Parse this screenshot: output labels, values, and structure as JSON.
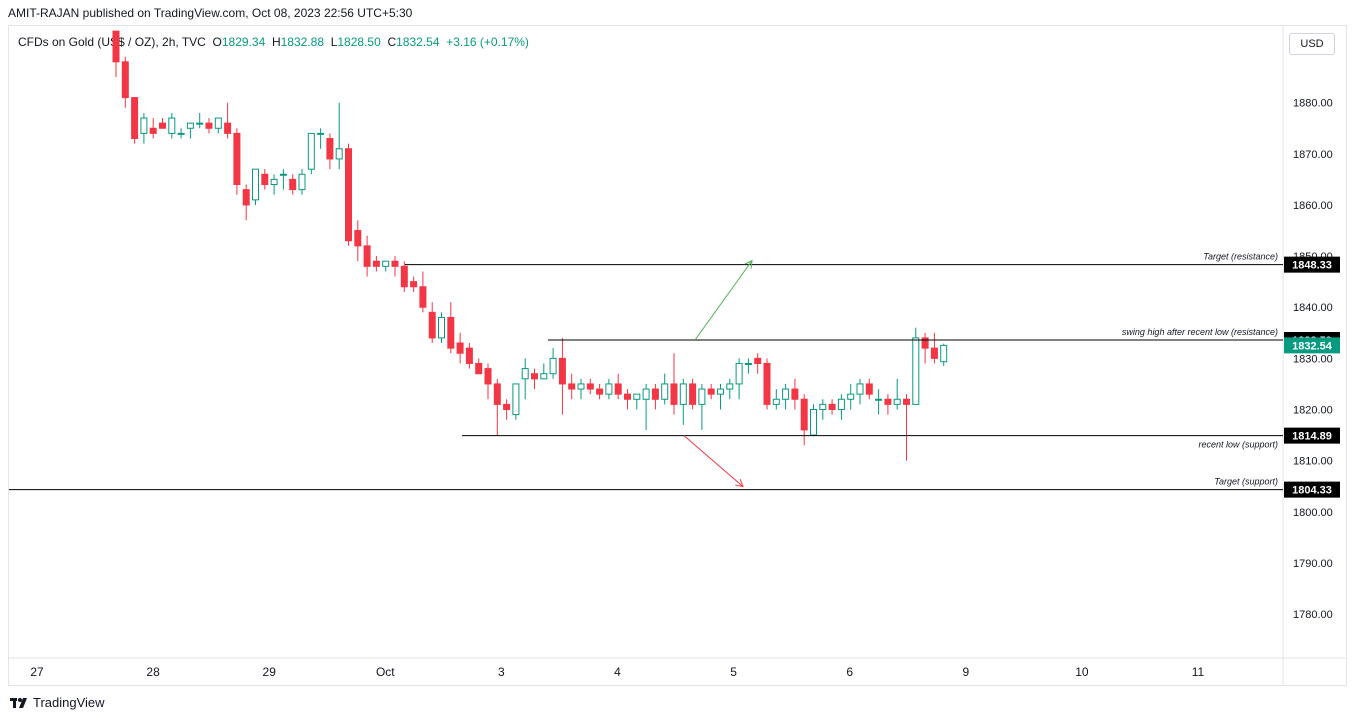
{
  "header": {
    "text": "AMIT-RAJAN published on TradingView.com, Oct 08, 2023 22:56 UTC+5:30"
  },
  "legend": {
    "symbol": "CFDs on Gold (US$ / OZ), 2h, TVC",
    "o_label": "O",
    "o": "1829.34",
    "h_label": "H",
    "h": "1832.88",
    "l_label": "L",
    "l": "1828.50",
    "c_label": "C",
    "c": "1832.54",
    "change": "+3.16 (+0.17%)"
  },
  "currency_button": "USD",
  "footer": {
    "brand": "TradingView"
  },
  "colors": {
    "up": "#089981",
    "down": "#f23645",
    "line": "#000000",
    "green_arrow": "#4caf50",
    "red_arrow": "#f23645"
  },
  "chart_data": {
    "type": "candlestick",
    "interval": "2h",
    "y_ticks": [
      1780,
      1790,
      1800,
      1810,
      1820,
      1830,
      1840,
      1850,
      1860,
      1870,
      1880
    ],
    "y_tick_labels": [
      "1780.00",
      "1790.00",
      "1800.00",
      "1810.00",
      "1820.00",
      "1830.00",
      "1840.00",
      "1850.00",
      "1860.00",
      "1870.00",
      "1880.00"
    ],
    "x_labels": [
      "27",
      "28",
      "29",
      "Oct",
      "3",
      "4",
      "5",
      "6",
      "9",
      "10",
      "11"
    ],
    "ylim": [
      1771.4,
      1895
    ],
    "levels": [
      {
        "price": 1848.33,
        "label": "1848.33",
        "annotation": "Target (resistance)",
        "start_date": "Oct 1"
      },
      {
        "price": 1833.59,
        "label": "1833.59",
        "annotation": "swing high after recent low (resistance)",
        "start_date": "Oct 3"
      },
      {
        "price": 1814.89,
        "label": "1814.89",
        "annotation": "recent low (support)",
        "start_date": "Oct 2"
      },
      {
        "price": 1804.33,
        "label": "1804.33",
        "annotation": "Target (support)",
        "start_date": "Sep 27"
      }
    ],
    "last_price": {
      "price": 1832.54,
      "label": "1832.54"
    },
    "candles": [
      [
        1894,
        1894,
        1885,
        1888
      ],
      [
        1888,
        1889,
        1879,
        1881
      ],
      [
        1881,
        1881,
        1872,
        1873
      ],
      [
        1874,
        1878,
        1872,
        1877
      ],
      [
        1875,
        1877,
        1873,
        1874
      ],
      [
        1876,
        1877,
        1875,
        1875
      ],
      [
        1874,
        1878,
        1873,
        1877
      ],
      [
        1874,
        1875,
        1873,
        1874
      ],
      [
        1875,
        1876,
        1873,
        1876
      ],
      [
        1876,
        1878,
        1875,
        1876
      ],
      [
        1876,
        1877,
        1874,
        1875
      ],
      [
        1875,
        1877,
        1874,
        1877
      ],
      [
        1876,
        1880,
        1873,
        1874
      ],
      [
        1874,
        1875,
        1862,
        1864
      ],
      [
        1863,
        1864,
        1857,
        1860
      ],
      [
        1861,
        1867,
        1860,
        1867
      ],
      [
        1866,
        1867,
        1863,
        1864
      ],
      [
        1864,
        1866,
        1862,
        1865
      ],
      [
        1866,
        1867,
        1863,
        1866
      ],
      [
        1865,
        1866,
        1862,
        1863
      ],
      [
        1863,
        1867,
        1862,
        1866
      ],
      [
        1867,
        1874,
        1866,
        1874
      ],
      [
        1874,
        1875,
        1871,
        1874
      ],
      [
        1873,
        1874,
        1867,
        1869
      ],
      [
        1869,
        1880,
        1867,
        1871
      ],
      [
        1871,
        1872,
        1852,
        1853
      ],
      [
        1855,
        1857,
        1849,
        1852
      ],
      [
        1852,
        1854,
        1846,
        1848
      ],
      [
        1849,
        1850,
        1847,
        1848
      ],
      [
        1848,
        1849,
        1847,
        1849
      ],
      [
        1849,
        1850,
        1846,
        1848
      ],
      [
        1848,
        1849,
        1843,
        1844
      ],
      [
        1845,
        1846,
        1843,
        1844
      ],
      [
        1844,
        1847,
        1839,
        1840
      ],
      [
        1839,
        1841,
        1833,
        1834
      ],
      [
        1834,
        1839,
        1833,
        1838
      ],
      [
        1838,
        1841,
        1831,
        1832
      ],
      [
        1833,
        1835,
        1829,
        1831
      ],
      [
        1832,
        1833,
        1828,
        1829
      ],
      [
        1829,
        1830,
        1827,
        1827
      ],
      [
        1828,
        1829,
        1822,
        1825
      ],
      [
        1825,
        1826,
        1815,
        1821
      ],
      [
        1821,
        1822,
        1818,
        1820
      ],
      [
        1819,
        1825,
        1818,
        1825
      ],
      [
        1826,
        1830,
        1822,
        1828
      ],
      [
        1827,
        1828,
        1824,
        1826
      ],
      [
        1826,
        1829,
        1826,
        1827
      ],
      [
        1827,
        1832,
        1826,
        1830
      ],
      [
        1830,
        1834,
        1819,
        1825
      ],
      [
        1825,
        1827,
        1822,
        1824
      ],
      [
        1824,
        1826,
        1822,
        1825
      ],
      [
        1825,
        1826,
        1823,
        1824
      ],
      [
        1824,
        1825,
        1822,
        1823
      ],
      [
        1823,
        1826,
        1822,
        1825
      ],
      [
        1825,
        1827,
        1822,
        1823
      ],
      [
        1823,
        1824,
        1820,
        1822
      ],
      [
        1822,
        1823,
        1820,
        1823
      ],
      [
        1822,
        1825,
        1816,
        1824
      ],
      [
        1824,
        1825,
        1820,
        1822
      ],
      [
        1822,
        1827,
        1821,
        1825
      ],
      [
        1825,
        1831,
        1819,
        1821
      ],
      [
        1821,
        1826,
        1817,
        1825
      ],
      [
        1825,
        1826,
        1820,
        1821
      ],
      [
        1821,
        1825,
        1816,
        1824
      ],
      [
        1824,
        1825,
        1822,
        1823
      ],
      [
        1823,
        1825,
        1820,
        1824
      ],
      [
        1824,
        1826,
        1822,
        1825
      ],
      [
        1825,
        1830,
        1822,
        1829
      ],
      [
        1829,
        1830,
        1827,
        1829
      ],
      [
        1830,
        1831,
        1827,
        1829
      ],
      [
        1829,
        1830,
        1820,
        1821
      ],
      [
        1821,
        1824,
        1820,
        1822
      ],
      [
        1822,
        1825,
        1820,
        1824
      ],
      [
        1824,
        1826,
        1820,
        1822
      ],
      [
        1822,
        1823,
        1813,
        1816
      ],
      [
        1815,
        1821,
        1815,
        1820
      ],
      [
        1820,
        1822,
        1818,
        1821
      ],
      [
        1821,
        1822,
        1819,
        1820
      ],
      [
        1820,
        1823,
        1818,
        1822
      ],
      [
        1822,
        1825,
        1820,
        1823
      ],
      [
        1823,
        1826,
        1821,
        1825
      ],
      [
        1825,
        1826,
        1822,
        1823
      ],
      [
        1822,
        1824,
        1819,
        1822
      ],
      [
        1822,
        1823,
        1819,
        1821
      ],
      [
        1821,
        1826,
        1820,
        1822
      ],
      [
        1822,
        1823,
        1810,
        1821
      ],
      [
        1821,
        1836,
        1821,
        1834
      ],
      [
        1834,
        1835,
        1829,
        1832
      ],
      [
        1832,
        1835,
        1829,
        1830
      ],
      [
        1829.34,
        1832.88,
        1828.5,
        1832.54
      ]
    ]
  }
}
